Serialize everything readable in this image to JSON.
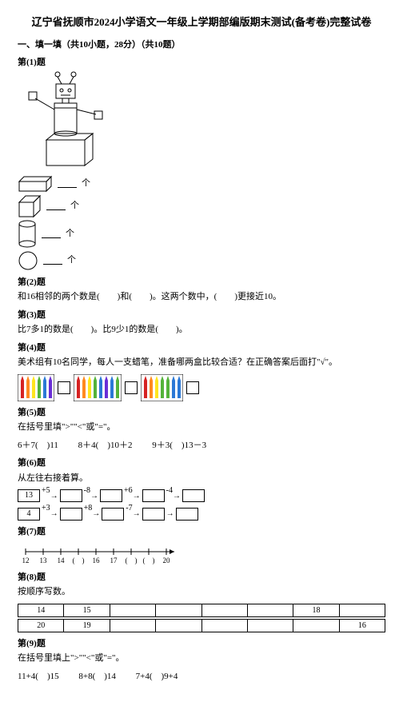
{
  "title": "辽宁省抚顺市2024小学语文一年级上学期部编版期末测试(备考卷)完整试卷",
  "section1": "一、填一填（共10小题，28分）（共10题）",
  "q1": {
    "label": "第(1)题",
    "unit": "个"
  },
  "q2": {
    "label": "第(2)题",
    "text_a": "和16相邻的两个数是(　　)和(　　)。这两个数中，(　　)更接近10。"
  },
  "q3": {
    "label": "第(3)题",
    "text_a": "比7多1的数是(　　)。比9少1的数是(　　)。"
  },
  "q4": {
    "label": "第(4)题",
    "text_a": "美术组有10名同学，每人一支蜡笔，准备哪两盒比较合适？在正确答案后面打\"√\"。",
    "crayon_colors1": [
      "#d62222",
      "#ff8a1f",
      "#ffe51f",
      "#54b33a",
      "#2b78d6",
      "#6a2ed6"
    ],
    "crayon_colors2": [
      "#d62222",
      "#ff8a1f",
      "#ffe51f",
      "#54b33a",
      "#2b78d6",
      "#6a2ed6",
      "#2b78d6",
      "#54b33a"
    ],
    "crayon_colors3": [
      "#d62222",
      "#ff8a1f",
      "#ffe51f",
      "#54b33a",
      "#54b33a",
      "#2b78d6",
      "#2b78d6"
    ]
  },
  "q5": {
    "label": "第(5)题",
    "text_a": "在括号里填\">\"\"<\"或\"=\"。",
    "items": [
      "6＋7(　)11",
      "8＋4(　)10＋2",
      "9＋3(　)13－3"
    ]
  },
  "q6": {
    "label": "第(6)题",
    "text_a": "从左往右接着算。",
    "chain1_start": "13",
    "chain1_ops": [
      "+5",
      "-8",
      "+6",
      "-4"
    ],
    "chain2_start": "4",
    "chain2_ops": [
      "+3",
      "+8",
      "-7",
      ""
    ]
  },
  "q7": {
    "label": "第(7)题",
    "ticks": [
      "12",
      "13",
      "14",
      "",
      "16",
      "17",
      "",
      "",
      "20"
    ]
  },
  "q8": {
    "label": "第(8)题",
    "text_a": "按顺序写数。",
    "row1": [
      "14",
      "15",
      "",
      "",
      "",
      "",
      "18",
      ""
    ],
    "row2": [
      "20",
      "19",
      "",
      "",
      "",
      "",
      "",
      "16"
    ]
  },
  "q9": {
    "label": "第(9)题",
    "text_a": "在括号里填上\">\"\"<\"或\"=\"。",
    "items": [
      "11+4(　)15",
      "8+8(　)14",
      "7+4(　)9+4"
    ]
  }
}
